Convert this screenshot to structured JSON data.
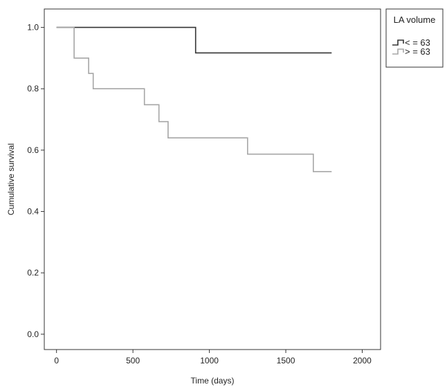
{
  "chart_data": {
    "type": "line",
    "subtype": "kaplan-meier step",
    "xlabel": "Time (days)",
    "ylabel": "Cumulative survival",
    "xlim": [
      -80,
      2120
    ],
    "ylim": [
      -0.05,
      1.06
    ],
    "xticks": [
      0,
      500,
      1000,
      1500,
      2000
    ],
    "yticks": [
      0.0,
      0.2,
      0.4,
      0.6,
      0.8,
      1.0
    ],
    "xtick_labels": [
      "0",
      "500",
      "1000",
      "1500",
      "2000"
    ],
    "ytick_labels": [
      "0.0",
      "0.2",
      "0.4",
      "0.6",
      "0.8",
      "1.0"
    ],
    "grid": false,
    "legend": {
      "title": "LA volume",
      "placement": "top-right outside"
    },
    "series": [
      {
        "name": "< = 63",
        "color": "#333333",
        "x": [
          0,
          910,
          1800
        ],
        "y": [
          1.0,
          0.917,
          0.917
        ]
      },
      {
        "name": "> = 63",
        "color": "#a6a6a6",
        "x": [
          0,
          115,
          210,
          240,
          575,
          670,
          730,
          1250,
          1680,
          1800
        ],
        "y": [
          1.0,
          0.9,
          0.85,
          0.8,
          0.748,
          0.693,
          0.64,
          0.587,
          0.53,
          0.53
        ]
      }
    ]
  }
}
